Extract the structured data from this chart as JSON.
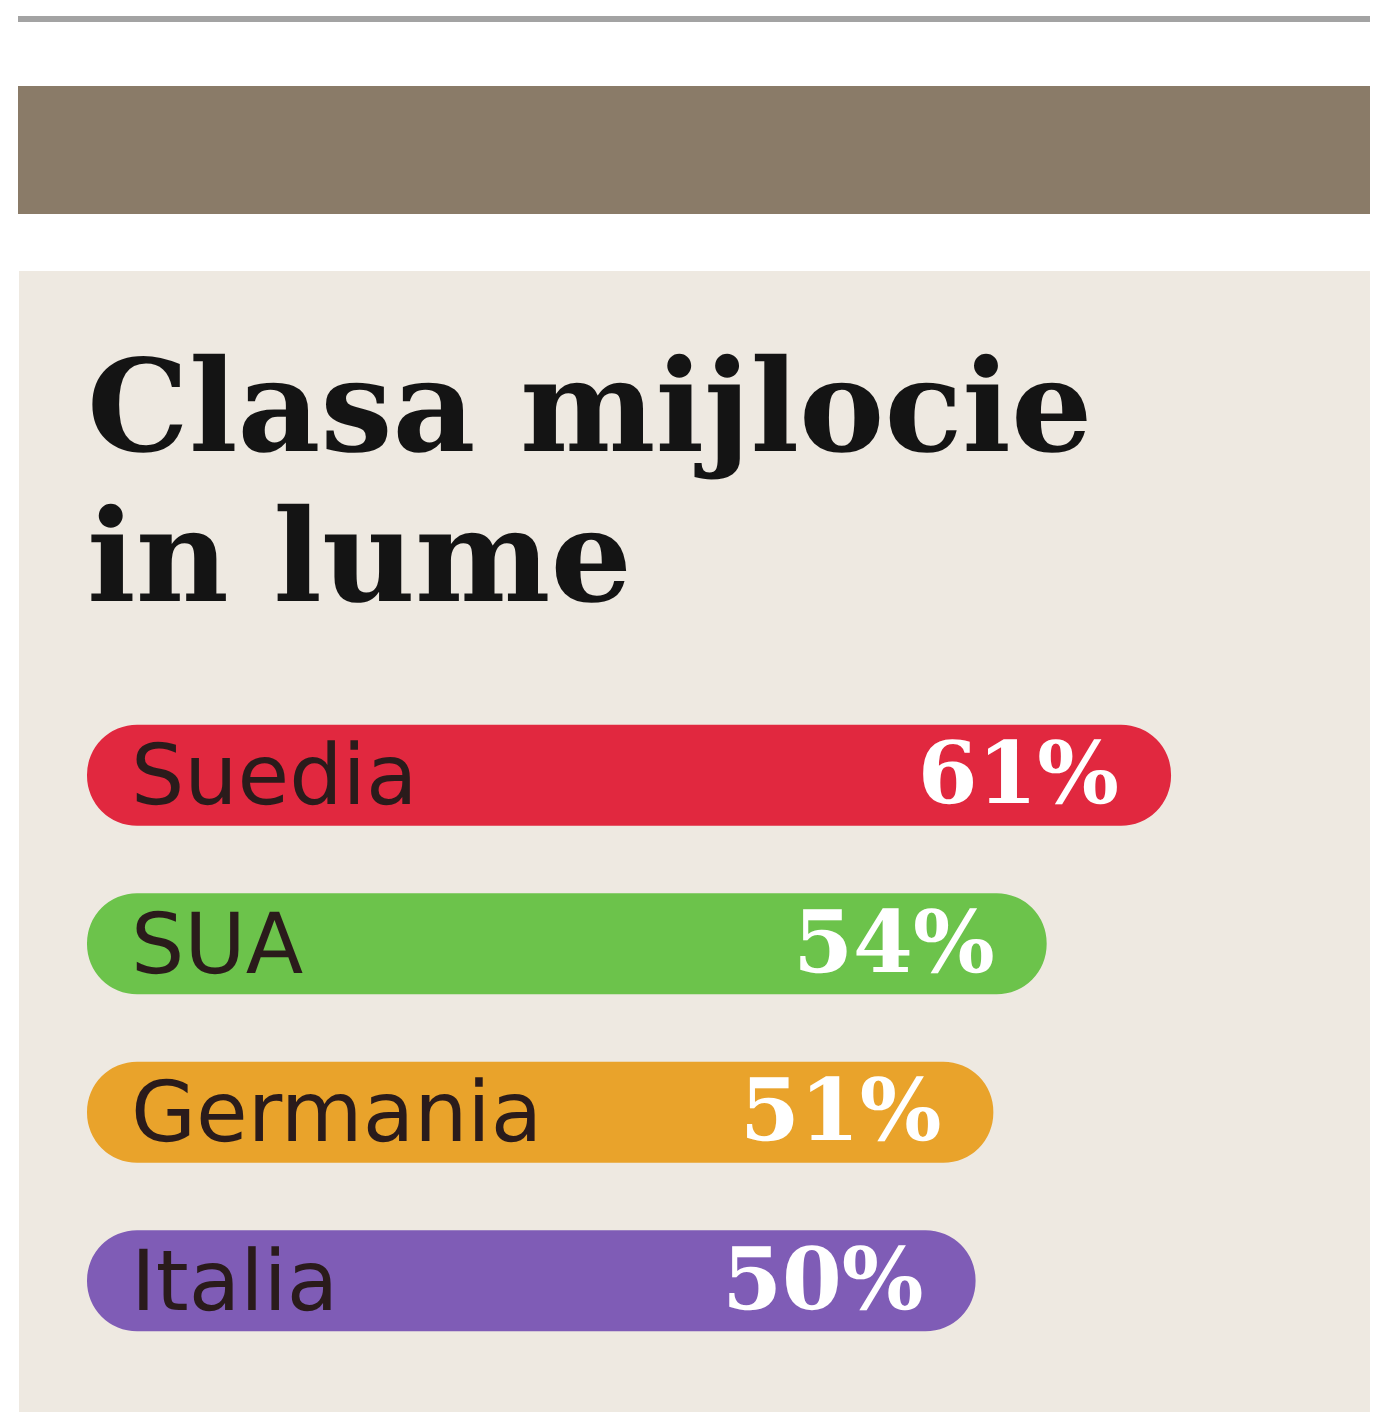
{
  "chart_data": {
    "type": "bar",
    "orientation": "horizontal",
    "title": "Clasa mijlocie\nin lume",
    "categories": [
      "Suedia",
      "SUA",
      "Germania",
      "Italia"
    ],
    "values": [
      61,
      54,
      51,
      50
    ],
    "colors": [
      "#e1283f",
      "#6cc34b",
      "#e9a32b",
      "#7f5cb6"
    ],
    "value_labels": [
      "61%",
      "54%",
      "51%",
      "50%"
    ],
    "xlim": [
      0,
      70
    ],
    "tick_labels": "y"
  }
}
